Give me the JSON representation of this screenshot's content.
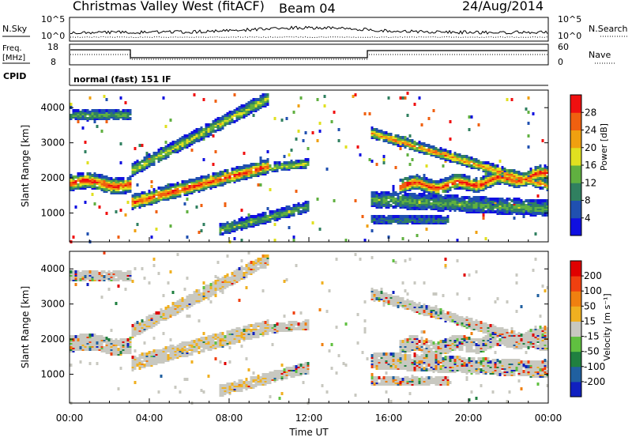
{
  "header": {
    "station": "Christmas Valley West (fitACF)",
    "beam": "Beam 04",
    "date": "24/Aug/2014"
  },
  "top_panels": {
    "nsky": {
      "label": "N.Sky",
      "ticks": [
        "10^5",
        "10^0"
      ]
    },
    "nsearch": {
      "label": "N.Search",
      "ticks": [
        "10^5",
        "10^0"
      ]
    },
    "freq": {
      "label_line1": "Freq.",
      "label_line2": "[MHz]",
      "ticks": [
        "18",
        "8"
      ]
    },
    "nave": {
      "label": "Nave",
      "ticks": [
        "60",
        "0"
      ]
    },
    "cpid": {
      "label": "CPID",
      "value": "normal (fast) 151 IF"
    }
  },
  "chart_data": [
    {
      "type": "heatmap",
      "ylabel": "Slant Range [km]",
      "ylim": [
        180,
        4500
      ],
      "yticks": [
        1000,
        2000,
        3000,
        4000
      ],
      "xlim": [
        "00:00",
        "24:00"
      ],
      "colorbar": {
        "label": "Power [dB]",
        "ticks": [
          "4",
          "8",
          "12",
          "16",
          "20",
          "24",
          "28"
        ],
        "range": [
          0,
          30
        ],
        "colors": [
          "#1010e0",
          "#2050b0",
          "#308060",
          "#60b040",
          "#e0e020",
          "#f0a010",
          "#f06010",
          "#f01010"
        ]
      }
    },
    {
      "type": "heatmap",
      "xlabel": "Time UT",
      "ylabel": "Slant Range [km]",
      "ylim": [
        180,
        4500
      ],
      "yticks": [
        1000,
        2000,
        3000,
        4000
      ],
      "xticks": [
        "00:00",
        "04:00",
        "08:00",
        "12:00",
        "16:00",
        "20:00",
        "00:00"
      ],
      "colorbar": {
        "label": "Velocity [m s⁻¹]",
        "ticks": [
          "200",
          "100",
          "50",
          "15",
          "-15",
          "-50",
          "-100",
          "-200"
        ],
        "colors": [
          "#1020c0",
          "#2060a0",
          "#208040",
          "#60c040",
          "#c8c8c0",
          "#f0b020",
          "#f08010",
          "#f04010",
          "#e00000"
        ]
      }
    }
  ]
}
